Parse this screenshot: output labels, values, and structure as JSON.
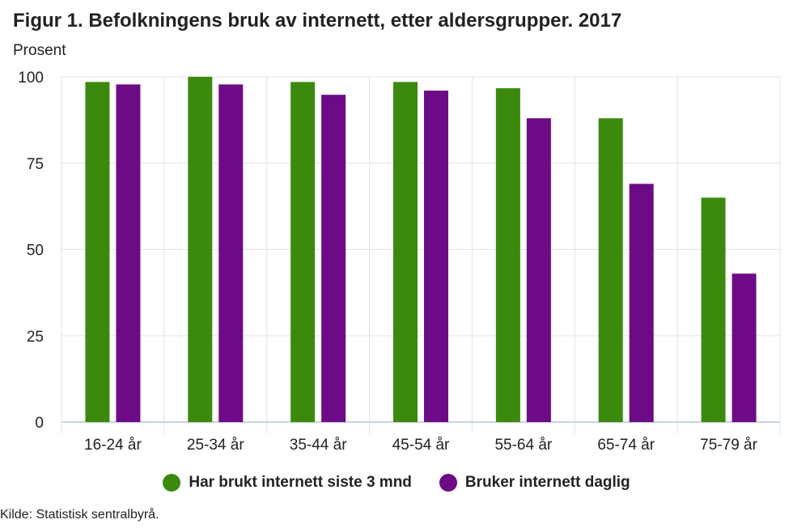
{
  "chart_data": {
    "type": "bar",
    "title": "Figur 1. Befolkningens bruk av internett, etter aldersgrupper. 2017",
    "ylabel": "Prosent",
    "ylim": [
      0,
      100
    ],
    "yticks": [
      "0",
      "25",
      "50",
      "75",
      "100"
    ],
    "categories": [
      "16-24 år",
      "25-34 år",
      "35-44 år",
      "45-54 år",
      "55-64 år",
      "65-74 år",
      "75-79 år"
    ],
    "series": [
      {
        "name": "Har brukt internett siste 3 mnd",
        "color": "#3b8a0e",
        "values": [
          98.5,
          100,
          98.5,
          98.5,
          96.7,
          88,
          65
        ]
      },
      {
        "name": "Bruker internett daglig",
        "color": "#6d0b86",
        "values": [
          97.8,
          97.8,
          94.8,
          96,
          88,
          69,
          43
        ]
      }
    ],
    "grid": true,
    "legend": "bottom-center"
  },
  "source": "Kilde: Statistisk sentralbyrå."
}
